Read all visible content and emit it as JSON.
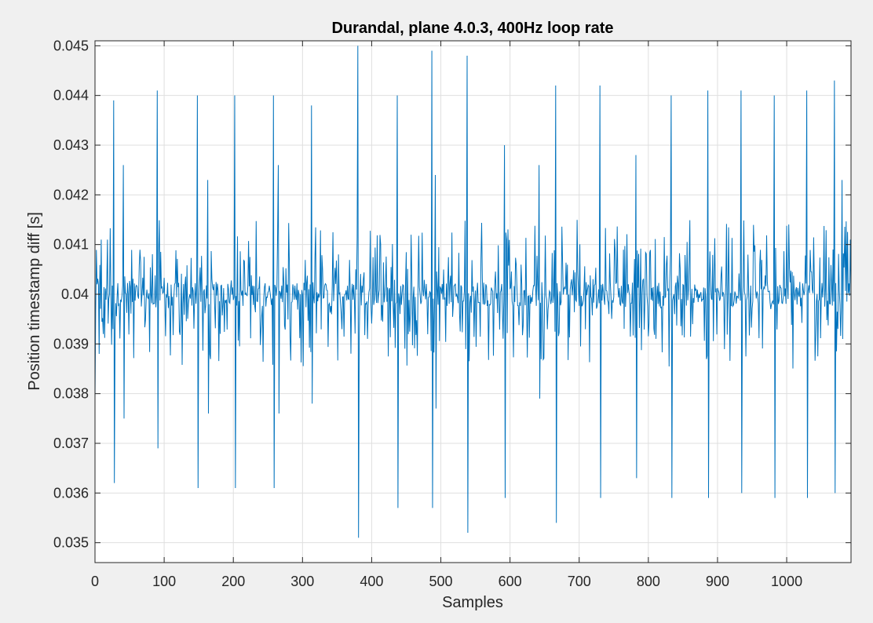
{
  "chart_data": {
    "type": "line",
    "title": "Durandal, plane 4.0.3, 400Hz loop rate",
    "xlabel": "Samples",
    "ylabel": "Position timestamp diff [s]",
    "xlim": [
      0,
      1093
    ],
    "ylim": [
      0.0346,
      0.0451
    ],
    "xticks": [
      0,
      100,
      200,
      300,
      400,
      500,
      600,
      700,
      800,
      900,
      1000
    ],
    "xtick_labels": [
      "0",
      "100",
      "200",
      "300",
      "400",
      "500",
      "600",
      "700",
      "800",
      "900",
      "1000"
    ],
    "yticks": [
      0.035,
      0.036,
      0.037,
      0.038,
      0.039,
      0.04,
      0.041,
      0.042,
      0.043,
      0.044,
      0.045
    ],
    "ytick_labels": [
      "0.035",
      "0.036",
      "0.037",
      "0.038",
      "0.039",
      "0.04",
      "0.041",
      "0.042",
      "0.043",
      "0.044",
      "0.045"
    ],
    "grid": true,
    "series": [
      {
        "color": "#0072BD",
        "baseline": 0.04,
        "points": [
          [
            0,
            0.0379
          ],
          [
            3,
            0.0402
          ],
          [
            6,
            0.0388
          ],
          [
            9,
            0.0411
          ],
          [
            12,
            0.0392
          ],
          [
            27,
            0.0439
          ],
          [
            28,
            0.0362
          ],
          [
            41,
            0.0426
          ],
          [
            42,
            0.0375
          ],
          [
            90,
            0.0441
          ],
          [
            91,
            0.0369
          ],
          [
            148,
            0.044
          ],
          [
            149,
            0.0361
          ],
          [
            163,
            0.0423
          ],
          [
            164,
            0.0376
          ],
          [
            202,
            0.044
          ],
          [
            203,
            0.0361
          ],
          [
            258,
            0.044
          ],
          [
            259,
            0.0361
          ],
          [
            265,
            0.0426
          ],
          [
            266,
            0.0376
          ],
          [
            313,
            0.0438
          ],
          [
            314,
            0.0378
          ],
          [
            380,
            0.045
          ],
          [
            381,
            0.0351
          ],
          [
            437,
            0.044
          ],
          [
            438,
            0.0357
          ],
          [
            487,
            0.0449
          ],
          [
            488,
            0.0357
          ],
          [
            492,
            0.0424
          ],
          [
            493,
            0.0377
          ],
          [
            538,
            0.0448
          ],
          [
            539,
            0.0352
          ],
          [
            592,
            0.043
          ],
          [
            593,
            0.0359
          ],
          [
            642,
            0.0426
          ],
          [
            643,
            0.0379
          ],
          [
            666,
            0.0442
          ],
          [
            667,
            0.0354
          ],
          [
            730,
            0.0442
          ],
          [
            731,
            0.0359
          ],
          [
            782,
            0.0428
          ],
          [
            783,
            0.0363
          ],
          [
            833,
            0.044
          ],
          [
            834,
            0.0359
          ],
          [
            886,
            0.0441
          ],
          [
            887,
            0.0359
          ],
          [
            934,
            0.0441
          ],
          [
            935,
            0.036
          ],
          [
            982,
            0.044
          ],
          [
            983,
            0.0359
          ],
          [
            1029,
            0.0441
          ],
          [
            1030,
            0.0359
          ],
          [
            1069,
            0.0443
          ],
          [
            1070,
            0.036
          ],
          [
            1080,
            0.0423
          ],
          [
            1081,
            0.0391
          ],
          [
            1092,
            0.0411
          ]
        ]
      }
    ]
  }
}
